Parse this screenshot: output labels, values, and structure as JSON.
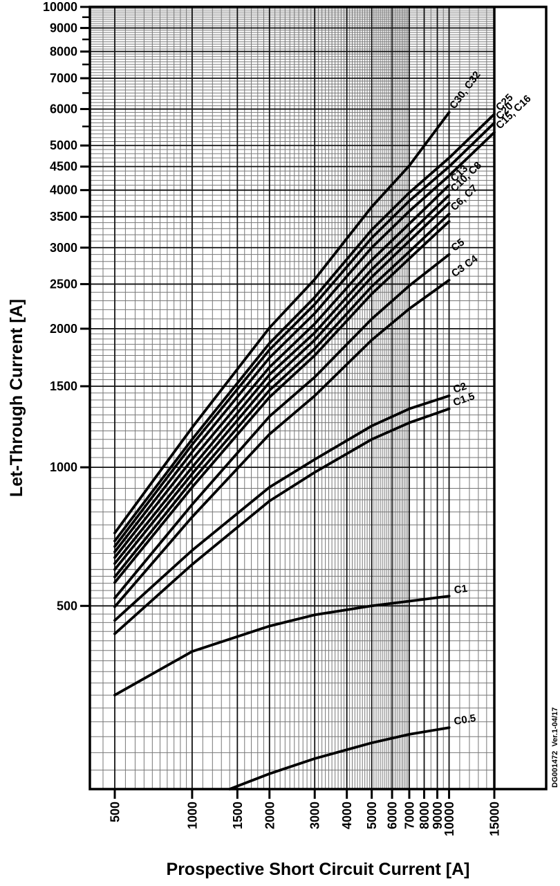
{
  "chart_data": {
    "type": "line",
    "title": "",
    "xlabel": "Prospective Short Circuit Current [A]",
    "ylabel": "Let-Through Current [A]",
    "note": "DG001472  Ver.1-04/17",
    "x_scale": "log",
    "y_scale": "log",
    "xlim": [
      400,
      15000
    ],
    "ylim": [
      200,
      10000
    ],
    "grid": "on",
    "legend_position": "curve-end-labels",
    "x_major_ticks": [
      500,
      1000,
      1500,
      2000,
      3000,
      4000,
      5000,
      6000,
      7000,
      8000,
      9000,
      10000,
      15000
    ],
    "x_tick_labels": [
      "500",
      "1000",
      "1500",
      "2000",
      "3000",
      "4000",
      "5000",
      "6000",
      "7000",
      "8000",
      "9000",
      "10000",
      "15000"
    ],
    "y_major_ticks": [
      500,
      1000,
      1500,
      2000,
      2500,
      3000,
      3500,
      4000,
      4500,
      5000,
      6000,
      7000,
      8000,
      9000,
      10000
    ],
    "y_tick_labels": [
      "500",
      "1000",
      "1500",
      "2000",
      "2500",
      "3000",
      "3500",
      "4000",
      "4500",
      "5000",
      "6000",
      "7000",
      "8000",
      "9000",
      "10000"
    ],
    "y_medium_ticks": [
      5500,
      6500,
      7500,
      8500,
      9500
    ],
    "x_minor_rules": [
      [
        400,
        1000,
        50
      ],
      [
        1000,
        7000,
        100
      ],
      [
        7000,
        10000,
        500
      ],
      [
        10000,
        15000,
        1000
      ]
    ],
    "y_minor_rules": [
      [
        200,
        600,
        20
      ],
      [
        600,
        2000,
        50
      ],
      [
        2000,
        10000,
        100
      ]
    ],
    "series": [
      {
        "name": "C30, C32",
        "label": "C30, C32",
        "points": [
          [
            500,
            720
          ],
          [
            1000,
            1220
          ],
          [
            2000,
            2010
          ],
          [
            3000,
            2560
          ],
          [
            5000,
            3680
          ],
          [
            7000,
            4520
          ],
          [
            10000,
            5900
          ]
        ]
      },
      {
        "name": "C25",
        "label": "C25",
        "points": [
          [
            500,
            692
          ],
          [
            1000,
            1150
          ],
          [
            2000,
            1860
          ],
          [
            3000,
            2340
          ],
          [
            5000,
            3280
          ],
          [
            7000,
            3950
          ],
          [
            10000,
            4700
          ],
          [
            15000,
            5850
          ]
        ]
      },
      {
        "name": "C20",
        "label": "C20",
        "points": [
          [
            500,
            673
          ],
          [
            1000,
            1120
          ],
          [
            2000,
            1800
          ],
          [
            3000,
            2260
          ],
          [
            5000,
            3150
          ],
          [
            7000,
            3790
          ],
          [
            10000,
            4500
          ],
          [
            15000,
            5600
          ]
        ]
      },
      {
        "name": "C15, C16",
        "label": "C15, C16",
        "points": [
          [
            500,
            655
          ],
          [
            1000,
            1080
          ],
          [
            2000,
            1730
          ],
          [
            3000,
            2160
          ],
          [
            5000,
            3000
          ],
          [
            7000,
            3600
          ],
          [
            10000,
            4300
          ],
          [
            15000,
            5340
          ]
        ]
      },
      {
        "name": "C13",
        "label": "C13",
        "points": [
          [
            500,
            637
          ],
          [
            1000,
            1040
          ],
          [
            2000,
            1650
          ],
          [
            3000,
            2050
          ],
          [
            5000,
            2820
          ],
          [
            7000,
            3380
          ],
          [
            10000,
            4100
          ]
        ]
      },
      {
        "name": "C10",
        "label": "C10, C8",
        "points": [
          [
            500,
            618
          ],
          [
            1000,
            1000
          ],
          [
            2000,
            1590
          ],
          [
            3000,
            1960
          ],
          [
            5000,
            2690
          ],
          [
            7000,
            3220
          ],
          [
            10000,
            3900
          ]
        ]
      },
      {
        "name": "C8",
        "label": "",
        "points": [
          [
            500,
            600
          ],
          [
            1000,
            968
          ],
          [
            2000,
            1530
          ],
          [
            3000,
            1890
          ],
          [
            5000,
            2590
          ],
          [
            7000,
            3100
          ],
          [
            10000,
            3750
          ]
        ]
      },
      {
        "name": "C7",
        "label": "C6, C7",
        "points": [
          [
            500,
            578
          ],
          [
            1000,
            935
          ],
          [
            2000,
            1470
          ],
          [
            3000,
            1810
          ],
          [
            5000,
            2470
          ],
          [
            7000,
            2940
          ],
          [
            10000,
            3550
          ]
        ]
      },
      {
        "name": "C6",
        "label": "",
        "points": [
          [
            500,
            562
          ],
          [
            1000,
            905
          ],
          [
            2000,
            1420
          ],
          [
            3000,
            1750
          ],
          [
            5000,
            2380
          ],
          [
            7000,
            2840
          ],
          [
            10000,
            3420
          ]
        ]
      },
      {
        "name": "C5",
        "label": "C5",
        "points": [
          [
            500,
            520
          ],
          [
            1000,
            830
          ],
          [
            2000,
            1290
          ],
          [
            3000,
            1570
          ],
          [
            5000,
            2100
          ],
          [
            7000,
            2480
          ],
          [
            10000,
            2900
          ]
        ]
      },
      {
        "name": "C3 C4",
        "label": "C3 C4",
        "points": [
          [
            500,
            498
          ],
          [
            1000,
            780
          ],
          [
            2000,
            1180
          ],
          [
            3000,
            1430
          ],
          [
            5000,
            1890
          ],
          [
            7000,
            2210
          ],
          [
            10000,
            2550
          ]
        ]
      },
      {
        "name": "C2",
        "label": "C2",
        "points": [
          [
            500,
            465
          ],
          [
            1000,
            660
          ],
          [
            2000,
            905
          ],
          [
            3000,
            1040
          ],
          [
            5000,
            1230
          ],
          [
            7000,
            1340
          ],
          [
            10000,
            1430
          ]
        ]
      },
      {
        "name": "C1.5",
        "label": "C1.5",
        "points": [
          [
            500,
            435
          ],
          [
            1000,
            615
          ],
          [
            2000,
            845
          ],
          [
            3000,
            975
          ],
          [
            5000,
            1150
          ],
          [
            7000,
            1250
          ],
          [
            10000,
            1340
          ]
        ]
      },
      {
        "name": "C1",
        "label": "C1",
        "points": [
          [
            500,
            320
          ],
          [
            1000,
            398
          ],
          [
            2000,
            452
          ],
          [
            3000,
            478
          ],
          [
            5000,
            500
          ],
          [
            7000,
            512
          ],
          [
            10000,
            525
          ]
        ]
      },
      {
        "name": "C0.5",
        "label": "C0.5",
        "points": [
          [
            1400,
            200
          ],
          [
            2000,
            216
          ],
          [
            3000,
            233
          ],
          [
            5000,
            252
          ],
          [
            7000,
            263
          ],
          [
            10000,
            272
          ]
        ]
      }
    ],
    "colors": {
      "curve": "#000000",
      "grid_minor": "#777777",
      "grid_major": "#111111",
      "frame": "#000000"
    }
  }
}
